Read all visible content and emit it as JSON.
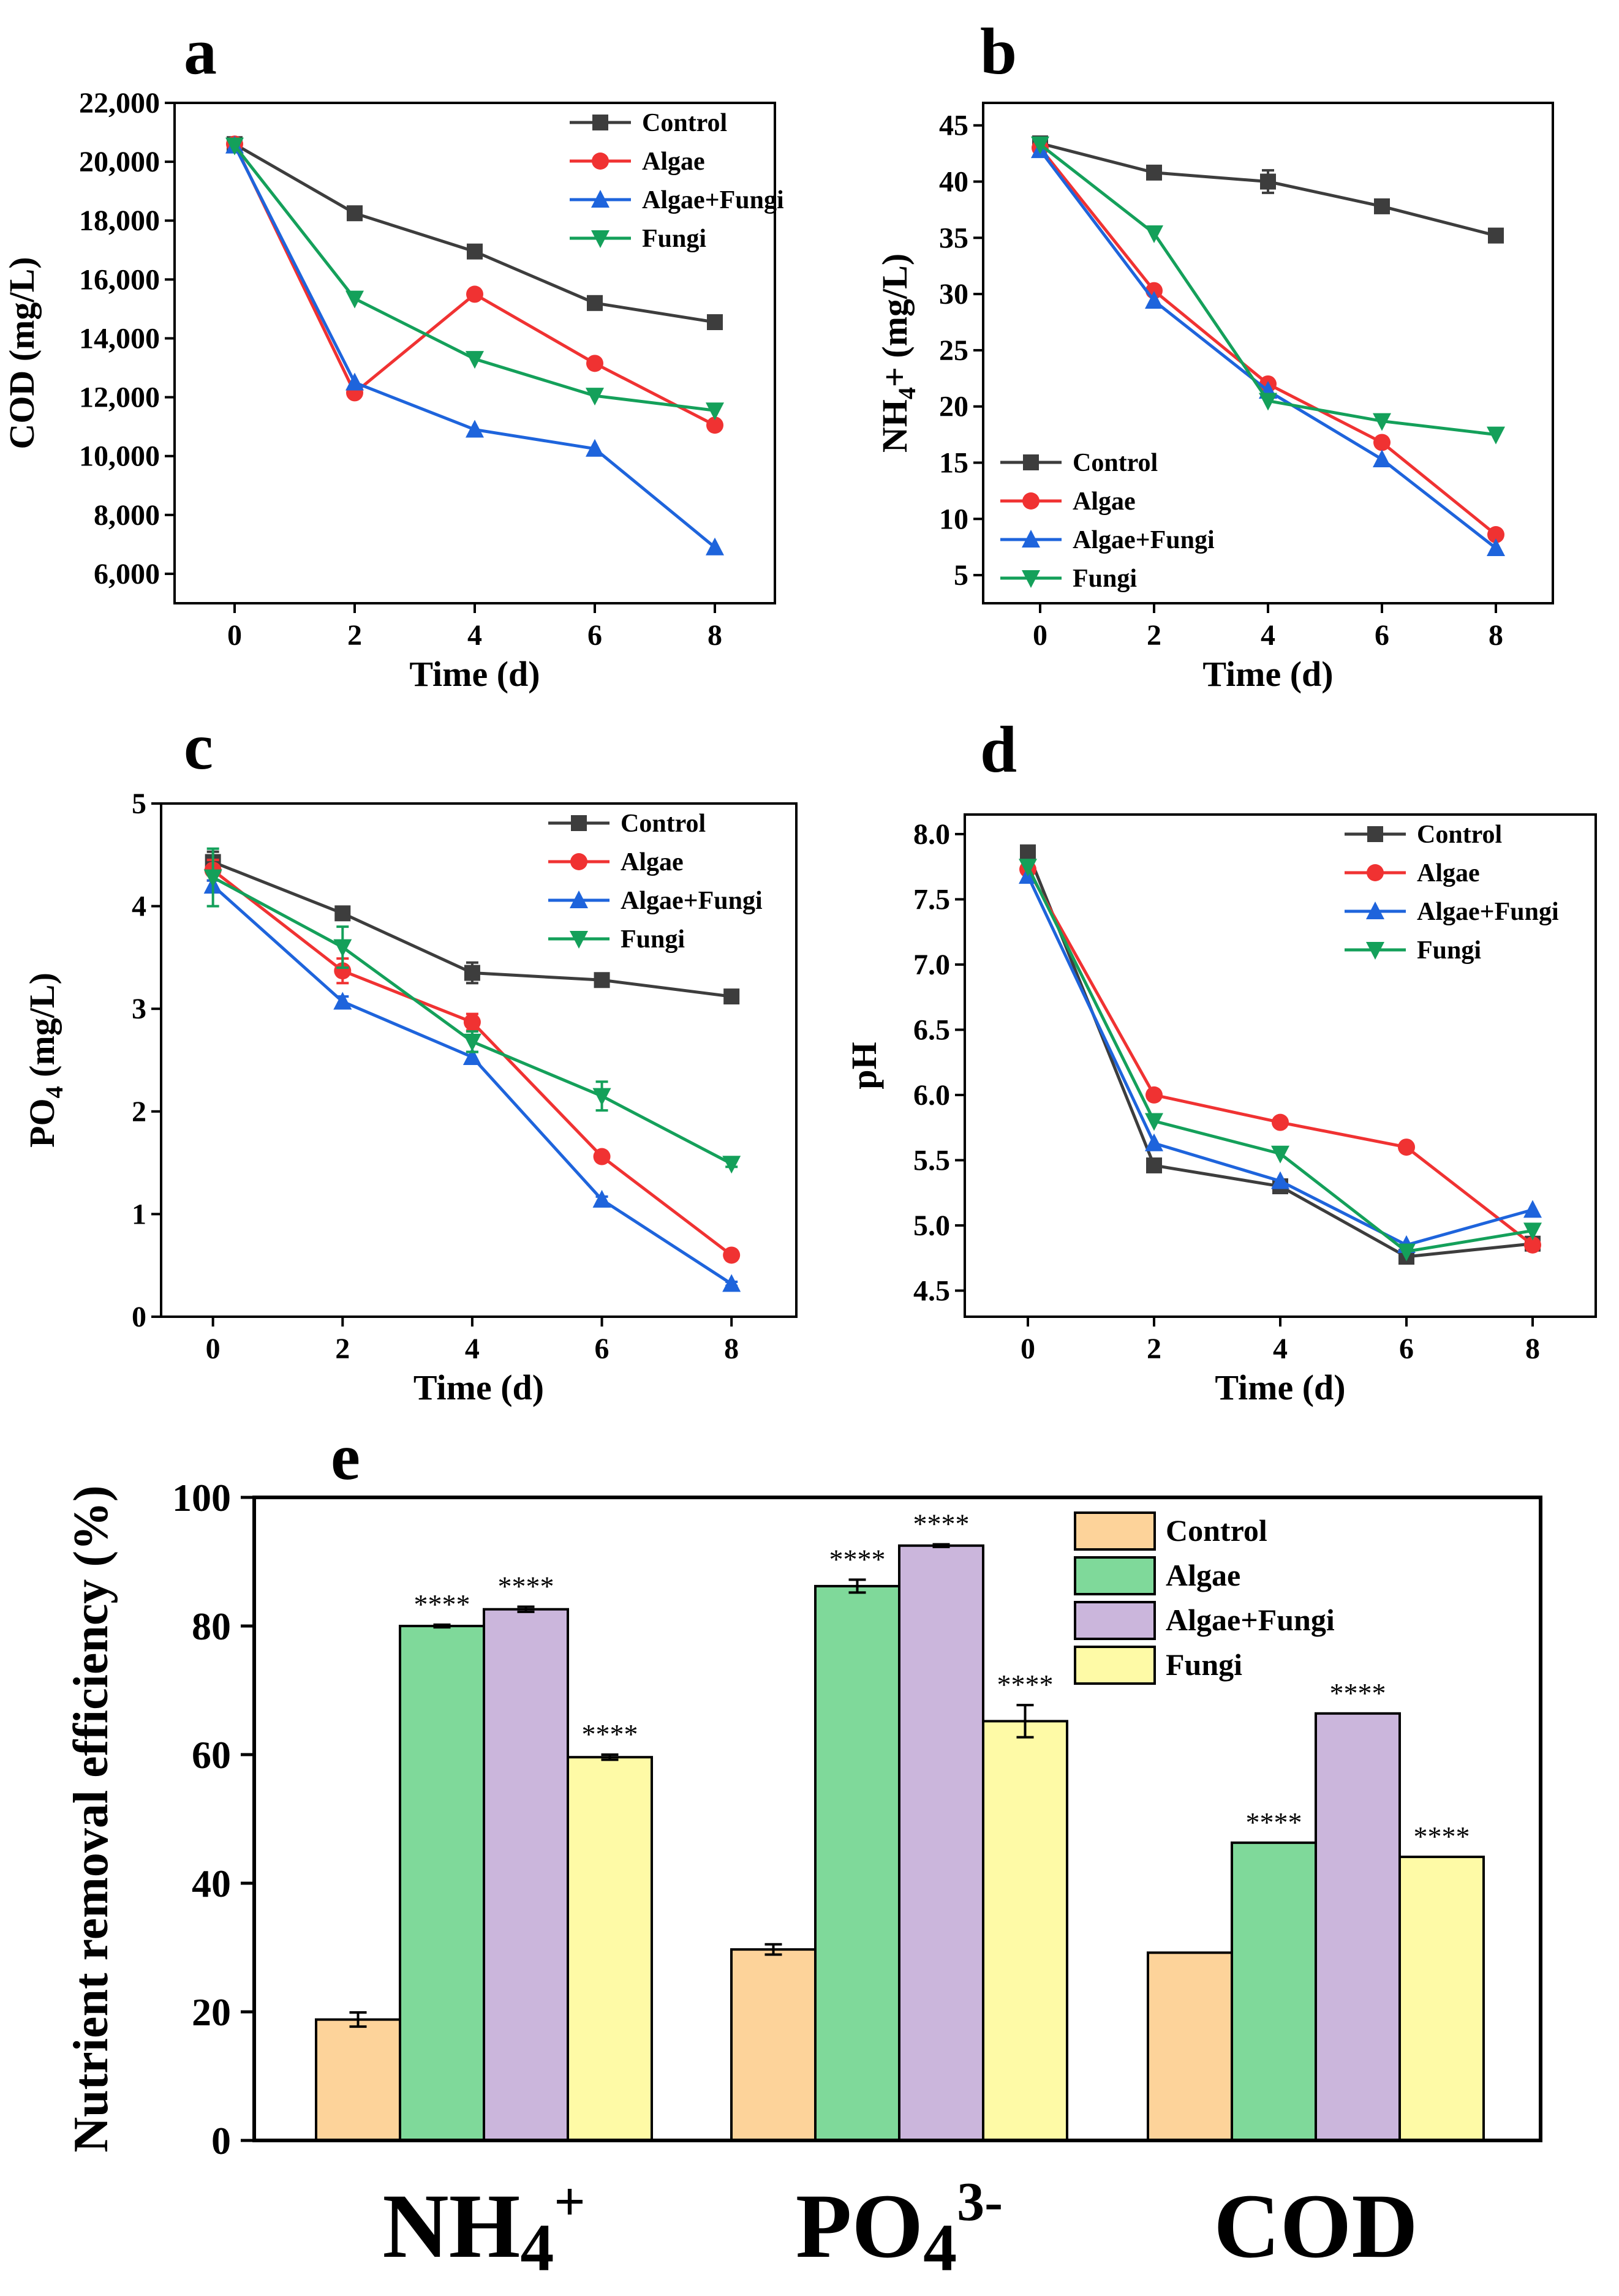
{
  "chart_data": [
    {
      "id": "a",
      "type": "line",
      "panel_label": "a",
      "xlabel": "Time (d)",
      "ylabel": "COD (mg/L)",
      "x": [
        0,
        2,
        4,
        6,
        8
      ],
      "xticks": [
        "0",
        "2",
        "4",
        "6",
        "8"
      ],
      "xlim": [
        -1,
        9
      ],
      "ylim": [
        5000,
        22000
      ],
      "yticks": [
        6000,
        8000,
        10000,
        12000,
        14000,
        16000,
        18000,
        20000,
        22000
      ],
      "yticklabels": [
        "6,000",
        "8,000",
        "10,000",
        "12,000",
        "14,000",
        "16,000",
        "18,000",
        "20,000",
        "22,000"
      ],
      "legend_position": "top-right",
      "series": [
        {
          "name": "Control",
          "color": "#3d3d3d",
          "marker": "square",
          "values": [
            20600,
            18250,
            16950,
            15200,
            14550
          ],
          "errors": [
            0,
            0,
            0,
            0,
            0
          ]
        },
        {
          "name": "Algae",
          "color": "#f03232",
          "marker": "circle",
          "values": [
            20600,
            12150,
            15500,
            13150,
            11050
          ],
          "errors": [
            0,
            0,
            0,
            0,
            0
          ]
        },
        {
          "name": "Algae+Fungi",
          "color": "#1e64dc",
          "marker": "triangle-up",
          "values": [
            20550,
            12500,
            10900,
            10250,
            6900
          ],
          "errors": [
            0,
            0,
            0,
            0,
            0
          ]
        },
        {
          "name": "Fungi",
          "color": "#14a05a",
          "marker": "triangle-down",
          "values": [
            20550,
            15350,
            13300,
            12050,
            11550
          ],
          "errors": [
            0,
            0,
            0,
            0,
            0
          ]
        }
      ]
    },
    {
      "id": "b",
      "type": "line",
      "panel_label": "b",
      "xlabel": "Time (d)",
      "ylabel_main": "NH",
      "ylabel_sub": "4",
      "ylabel_tail": "+ (mg/L)",
      "x": [
        0,
        2,
        4,
        6,
        8
      ],
      "xticks": [
        "0",
        "2",
        "4",
        "6",
        "8"
      ],
      "xlim": [
        -1,
        9
      ],
      "ylim": [
        2.5,
        47
      ],
      "yticks": [
        5,
        10,
        15,
        20,
        25,
        30,
        35,
        40,
        45
      ],
      "yticklabels": [
        "5",
        "10",
        "15",
        "20",
        "25",
        "30",
        "35",
        "40",
        "45"
      ],
      "legend_position": "bottom-left",
      "series": [
        {
          "name": "Control",
          "color": "#3d3d3d",
          "marker": "square",
          "values": [
            43.4,
            40.8,
            40.0,
            37.8,
            35.2
          ],
          "errors": [
            0.4,
            0.3,
            1.0,
            0.3,
            0.3
          ]
        },
        {
          "name": "Algae",
          "color": "#f03232",
          "marker": "circle",
          "values": [
            43.0,
            30.3,
            22.0,
            16.8,
            8.6
          ],
          "errors": [
            0,
            0,
            0,
            0,
            0
          ]
        },
        {
          "name": "Algae+Fungi",
          "color": "#1e64dc",
          "marker": "triangle-up",
          "values": [
            42.8,
            29.4,
            21.4,
            15.3,
            7.4
          ],
          "errors": [
            0,
            0,
            0,
            0,
            0
          ]
        },
        {
          "name": "Fungi",
          "color": "#14a05a",
          "marker": "triangle-down",
          "values": [
            43.3,
            35.4,
            20.5,
            18.7,
            17.5
          ],
          "errors": [
            0,
            0,
            0,
            0,
            0
          ]
        }
      ]
    },
    {
      "id": "c",
      "type": "line",
      "panel_label": "c",
      "xlabel": "Time (d)",
      "ylabel_main": "PO",
      "ylabel_sub": "4",
      "ylabel_tail": " (mg/L)",
      "x": [
        0,
        2,
        4,
        6,
        8
      ],
      "xticks": [
        "0",
        "2",
        "4",
        "6",
        "8"
      ],
      "xlim": [
        -0.8,
        9.0
      ],
      "ylim": [
        0,
        5
      ],
      "yticks": [
        0,
        1,
        2,
        3,
        4,
        5
      ],
      "yticklabels": [
        "0",
        "1",
        "2",
        "3",
        "4",
        "5"
      ],
      "legend_position": "top-right",
      "series": [
        {
          "name": "Control",
          "color": "#3d3d3d",
          "marker": "square",
          "values": [
            4.43,
            3.93,
            3.35,
            3.28,
            3.12
          ],
          "errors": [
            0.1,
            0.06,
            0.1,
            0.04,
            0.03
          ]
        },
        {
          "name": "Algae",
          "color": "#f03232",
          "marker": "circle",
          "values": [
            4.35,
            3.37,
            2.87,
            1.56,
            0.6
          ],
          "errors": [
            0.1,
            0.12,
            0.08,
            0.03,
            0.04
          ]
        },
        {
          "name": "Algae+Fungi",
          "color": "#1e64dc",
          "marker": "triangle-up",
          "values": [
            4.2,
            3.07,
            2.53,
            1.14,
            0.32
          ],
          "errors": [
            0.05,
            0.05,
            0.05,
            0.03,
            0.02
          ]
        },
        {
          "name": "Fungi",
          "color": "#14a05a",
          "marker": "triangle-down",
          "values": [
            4.28,
            3.6,
            2.68,
            2.15,
            1.49
          ],
          "errors": [
            0.28,
            0.2,
            0.1,
            0.14,
            0.03
          ]
        }
      ]
    },
    {
      "id": "d",
      "type": "line",
      "panel_label": "d",
      "xlabel": "Time (d)",
      "ylabel": "pH",
      "x": [
        0,
        2,
        4,
        6,
        8
      ],
      "xticks": [
        "0",
        "2",
        "4",
        "6",
        "8"
      ],
      "xlim": [
        -1,
        9
      ],
      "ylim": [
        4.3,
        8.15
      ],
      "yticks": [
        4.5,
        5.0,
        5.5,
        6.0,
        6.5,
        7.0,
        7.5,
        8.0
      ],
      "yticklabels": [
        "4.5",
        "5.0",
        "5.5",
        "6.0",
        "6.5",
        "7.0",
        "7.5",
        "8.0"
      ],
      "legend_position": "top-right",
      "series": [
        {
          "name": "Control",
          "color": "#3d3d3d",
          "marker": "square",
          "values": [
            7.86,
            5.46,
            5.3,
            4.76,
            4.86
          ],
          "errors": [
            0,
            0,
            0,
            0,
            0
          ]
        },
        {
          "name": "Algae",
          "color": "#f03232",
          "marker": "circle",
          "values": [
            7.73,
            6.0,
            5.79,
            5.6,
            4.85
          ],
          "errors": [
            0,
            0,
            0,
            0,
            0
          ]
        },
        {
          "name": "Algae+Fungi",
          "color": "#1e64dc",
          "marker": "triangle-up",
          "values": [
            7.68,
            5.63,
            5.34,
            4.85,
            5.12
          ],
          "errors": [
            0,
            0,
            0,
            0,
            0
          ]
        },
        {
          "name": "Fungi",
          "color": "#14a05a",
          "marker": "triangle-down",
          "values": [
            7.75,
            5.8,
            5.55,
            4.8,
            4.96
          ],
          "errors": [
            0,
            0,
            0,
            0,
            0
          ]
        }
      ]
    },
    {
      "id": "e",
      "type": "bar",
      "panel_label": "e",
      "ylabel": "Nutrient removal efficiency (%)",
      "ylim": [
        0,
        100
      ],
      "yticks": [
        0,
        20,
        40,
        60,
        80,
        100
      ],
      "yticklabels": [
        "0",
        "20",
        "40",
        "60",
        "80",
        "100"
      ],
      "categories": [
        {
          "main": "NH",
          "sub": "4",
          "sup": "+"
        },
        {
          "main": "PO",
          "sub": "4",
          "sup": "3-"
        },
        {
          "main": "COD",
          "sub": "",
          "sup": ""
        }
      ],
      "legend_position": "top-right",
      "series": [
        {
          "name": "Control",
          "color": "#fdd39a",
          "values": [
            18.8,
            29.7,
            29.2
          ],
          "errors": [
            1.1,
            0.8,
            0
          ],
          "significance": [
            "",
            "",
            ""
          ]
        },
        {
          "name": "Algae",
          "color": "#7fd99a",
          "values": [
            80.0,
            86.2,
            46.3
          ],
          "errors": [
            0.2,
            1.0,
            0
          ],
          "significance": [
            "****",
            "****",
            "****"
          ]
        },
        {
          "name": "Algae+Fungi",
          "color": "#cbb6dc",
          "values": [
            82.6,
            92.5,
            66.4
          ],
          "errors": [
            0.4,
            0.2,
            0
          ],
          "significance": [
            "****",
            "****",
            "****"
          ]
        },
        {
          "name": "Fungi",
          "color": "#fefaa6",
          "values": [
            59.6,
            65.2,
            44.1
          ],
          "errors": [
            0.4,
            2.5,
            0
          ],
          "significance": [
            "****",
            "****",
            "****"
          ]
        }
      ]
    }
  ]
}
